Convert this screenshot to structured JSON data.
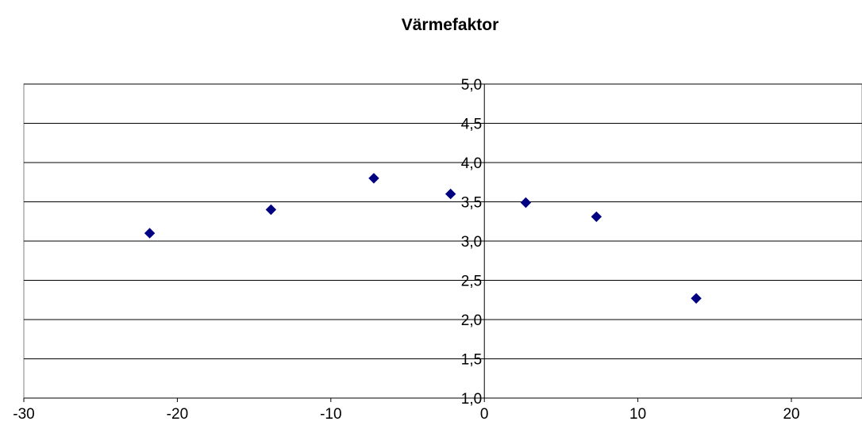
{
  "chart_data": {
    "type": "scatter",
    "title": "Värmefaktor",
    "xlabel": "",
    "ylabel": "",
    "xlim": [
      -30,
      24.6
    ],
    "ylim": [
      1.0,
      5.0
    ],
    "x_ticks": [
      -30,
      -20,
      -10,
      0,
      10,
      20
    ],
    "x_tick_labels": [
      "-30",
      "-20",
      "-10",
      "0",
      "10",
      "20"
    ],
    "y_ticks": [
      1.0,
      1.5,
      2.0,
      2.5,
      3.0,
      3.5,
      4.0,
      4.5,
      5.0
    ],
    "y_tick_labels": [
      "1,0",
      "1,5",
      "2,0",
      "2,5",
      "3,0",
      "3,5",
      "4,0",
      "4,5",
      "5,0"
    ],
    "grid": true,
    "legend": "none",
    "marker": "diamond",
    "marker_color": "#000080",
    "series": [
      {
        "x": [
          -21.8,
          -13.9,
          -7.2,
          -2.2,
          2.7,
          7.3,
          13.8
        ],
        "y": [
          3.1,
          3.4,
          3.8,
          3.6,
          3.49,
          3.31,
          2.27
        ]
      }
    ]
  }
}
